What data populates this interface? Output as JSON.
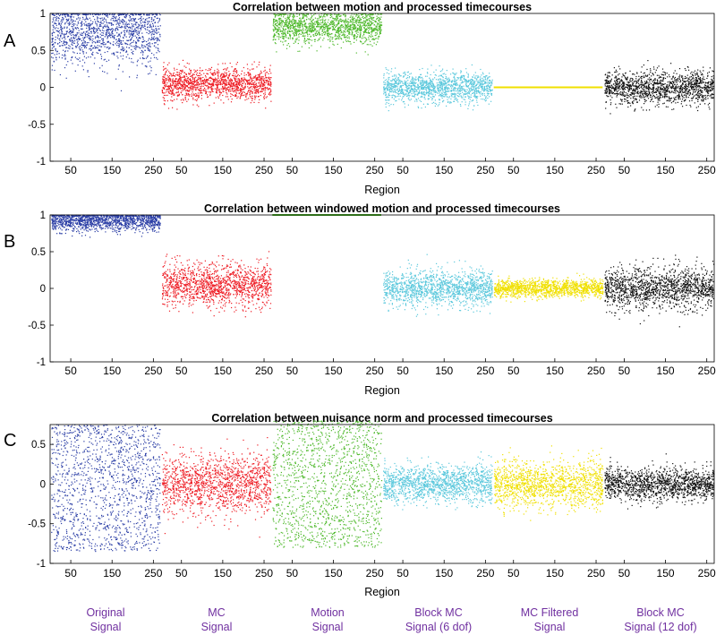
{
  "chart_data": [
    {
      "panel_letter": "A",
      "type": "scatter",
      "title": "Correlation between motion and processed timecourses",
      "xlabel": "Region",
      "ylabel": "",
      "ylim": [
        -1,
        1
      ],
      "yticks": [
        "-1",
        "-0.5",
        "0",
        "0.5",
        "1"
      ],
      "segments_per_group": 268,
      "xticks_per_group": [
        "50",
        "150",
        "250"
      ],
      "groups": [
        {
          "name": "Original Signal",
          "color": "#2c3fa6",
          "center": 0.75,
          "spread": 0.22,
          "min": -0.1,
          "max": 1.0
        },
        {
          "name": "MC Signal",
          "color": "#ee1c24",
          "center": 0.05,
          "spread": 0.11,
          "min": -0.3,
          "max": 0.45
        },
        {
          "name": "Motion Signal",
          "color": "#4db82a",
          "center": 0.82,
          "spread": 0.11,
          "min": 0.12,
          "max": 1.0
        },
        {
          "name": "Block MC Signal (6 dof)",
          "color": "#5bc8dc",
          "center": 0.0,
          "spread": 0.1,
          "min": -0.6,
          "max": 0.5
        },
        {
          "name": "MC Filtered Signal",
          "color": "#f0e000",
          "center": 0.0,
          "spread": 0.0,
          "min": 0.0,
          "max": 0.0
        },
        {
          "name": "Block MC Signal (12 dof)",
          "color": "#111111",
          "center": 0.0,
          "spread": 0.11,
          "min": -0.55,
          "max": 0.5
        }
      ]
    },
    {
      "panel_letter": "B",
      "type": "scatter",
      "title": "Correlation between windowed motion and processed timecourses",
      "xlabel": "Region",
      "ylabel": "",
      "ylim": [
        -1,
        1
      ],
      "yticks": [
        "-1",
        "-0.5",
        "0",
        "0.5",
        "1"
      ],
      "segments_per_group": 268,
      "xticks_per_group": [
        "50",
        "150",
        "250"
      ],
      "groups": [
        {
          "name": "Original Signal",
          "color": "#2c3fa6",
          "center": 0.93,
          "spread": 0.07,
          "min": 0.08,
          "max": 1.0
        },
        {
          "name": "MC Signal",
          "color": "#ee1c24",
          "center": 0.05,
          "spread": 0.14,
          "min": -0.75,
          "max": 0.62
        },
        {
          "name": "Motion Signal",
          "color": "#4db82a",
          "center": 1.0,
          "spread": 0.0,
          "min": 0.99,
          "max": 1.0
        },
        {
          "name": "Block MC Signal (6 dof)",
          "color": "#5bc8dc",
          "center": 0.0,
          "spread": 0.12,
          "min": -0.8,
          "max": 0.55
        },
        {
          "name": "MC Filtered Signal",
          "color": "#f0e000",
          "center": 0.0,
          "spread": 0.06,
          "min": -0.5,
          "max": 0.4
        },
        {
          "name": "Block MC Signal (12 dof)",
          "color": "#111111",
          "center": 0.0,
          "spread": 0.14,
          "min": -0.65,
          "max": 0.55
        }
      ]
    },
    {
      "panel_letter": "C",
      "type": "scatter",
      "title": "Correlation between nuisance norm and processed timecourses",
      "xlabel": "Region",
      "ylabel": "",
      "ylim": [
        -1,
        0.75
      ],
      "yticks": [
        "-1",
        "-0.5",
        "0",
        "0.5"
      ],
      "segments_per_group": 268,
      "xticks_per_group": [
        "50",
        "150",
        "250"
      ],
      "groups": [
        {
          "name": "Original Signal",
          "color": "#2c3fa6",
          "center": 0.0,
          "spread": 0.6,
          "min": -0.85,
          "max": 0.75,
          "uniform": true
        },
        {
          "name": "MC Signal",
          "color": "#ee1c24",
          "center": 0.0,
          "spread": 0.18,
          "min": -0.7,
          "max": 0.6
        },
        {
          "name": "Motion Signal",
          "color": "#4db82a",
          "center": 0.0,
          "spread": 0.6,
          "min": -0.8,
          "max": 0.8,
          "uniform": true
        },
        {
          "name": "Block MC Signal (6 dof)",
          "color": "#5bc8dc",
          "center": 0.0,
          "spread": 0.12,
          "min": -0.55,
          "max": 0.45
        },
        {
          "name": "MC Filtered Signal",
          "color": "#f0e000",
          "center": 0.0,
          "spread": 0.15,
          "min": -0.7,
          "max": 0.6
        },
        {
          "name": "Block MC Signal (12 dof)",
          "color": "#111111",
          "center": 0.0,
          "spread": 0.1,
          "min": -0.6,
          "max": 0.4
        }
      ]
    }
  ],
  "group_labels": [
    {
      "line1": "Original",
      "line2": "Signal"
    },
    {
      "line1": "MC",
      "line2": "Signal"
    },
    {
      "line1": "Motion",
      "line2": "Signal"
    },
    {
      "line1": "Block MC",
      "line2": "Signal (6 dof)"
    },
    {
      "line1": "MC Filtered",
      "line2": "Signal"
    },
    {
      "line1": "Block MC",
      "line2": "Signal (12 dof)"
    }
  ]
}
